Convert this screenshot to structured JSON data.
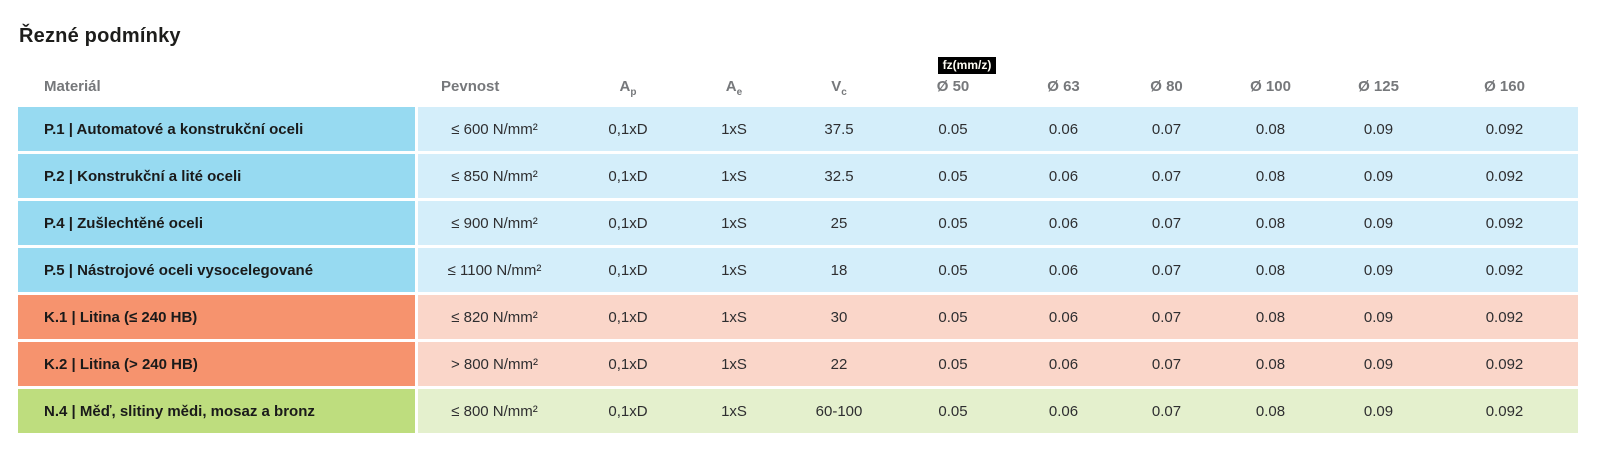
{
  "page": {
    "title": "Řezné podmínky"
  },
  "table": {
    "badge": "fz(mm/z)",
    "headers": {
      "material": "Materiál",
      "pevnost": "Pevnost",
      "ap_base": "A",
      "ap_sub": "p",
      "ae_base": "A",
      "ae_sub": "e",
      "vc_base": "V",
      "vc_sub": "c",
      "diameters": [
        "Ø 50",
        "Ø 63",
        "Ø 80",
        "Ø 100",
        "Ø 125",
        "Ø 160"
      ]
    },
    "colors": {
      "badge_bg": "#000000",
      "badge_fg": "#fffef5",
      "blue": {
        "label": "#97daf1",
        "data": "#d4eefa"
      },
      "orange": {
        "label": "#f6936e",
        "data": "#fad6c9"
      },
      "green": {
        "label": "#bedd7e",
        "data": "#e4f0cd"
      }
    },
    "rows": [
      {
        "color": "blue",
        "material": "P.1 | Automatové a konstrukční oceli",
        "pevnost": "≤ 600 N/mm²",
        "ap": "0,1xD",
        "ae": "1xS",
        "vc": "37.5",
        "fz": [
          "0.05",
          "0.06",
          "0.07",
          "0.08",
          "0.09",
          "0.092"
        ]
      },
      {
        "color": "blue",
        "material": "P.2 | Konstrukční a lité oceli",
        "pevnost": "≤ 850 N/mm²",
        "ap": "0,1xD",
        "ae": "1xS",
        "vc": "32.5",
        "fz": [
          "0.05",
          "0.06",
          "0.07",
          "0.08",
          "0.09",
          "0.092"
        ]
      },
      {
        "color": "blue",
        "material": "P.4 | Zušlechtěné oceli",
        "pevnost": "≤ 900 N/mm²",
        "ap": "0,1xD",
        "ae": "1xS",
        "vc": "25",
        "fz": [
          "0.05",
          "0.06",
          "0.07",
          "0.08",
          "0.09",
          "0.092"
        ]
      },
      {
        "color": "blue",
        "material": "P.5 | Nástrojové oceli vysocelegované",
        "pevnost": "≤ 1100 N/mm²",
        "ap": "0,1xD",
        "ae": "1xS",
        "vc": "18",
        "fz": [
          "0.05",
          "0.06",
          "0.07",
          "0.08",
          "0.09",
          "0.092"
        ]
      },
      {
        "color": "orange",
        "material": "K.1 | Litina (≤ 240 HB)",
        "pevnost": "≤ 820 N/mm²",
        "ap": "0,1xD",
        "ae": "1xS",
        "vc": "30",
        "fz": [
          "0.05",
          "0.06",
          "0.07",
          "0.08",
          "0.09",
          "0.092"
        ]
      },
      {
        "color": "orange",
        "material": "K.2 | Litina (> 240 HB)",
        "pevnost": "> 800 N/mm²",
        "ap": "0,1xD",
        "ae": "1xS",
        "vc": "22",
        "fz": [
          "0.05",
          "0.06",
          "0.07",
          "0.08",
          "0.09",
          "0.092"
        ]
      },
      {
        "color": "green",
        "material": "N.4 | Měď, slitiny mědi, mosaz a bronz",
        "pevnost": "≤ 800 N/mm²",
        "ap": "0,1xD",
        "ae": "1xS",
        "vc": "60-100",
        "fz": [
          "0.05",
          "0.06",
          "0.07",
          "0.08",
          "0.09",
          "0.092"
        ]
      }
    ]
  }
}
